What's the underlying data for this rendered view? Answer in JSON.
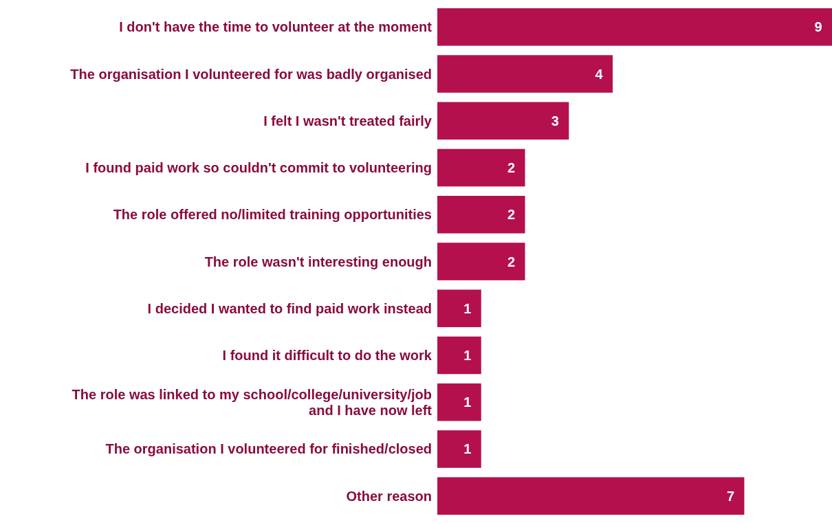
{
  "chart_data": {
    "type": "bar",
    "orientation": "horizontal",
    "data_labels": true,
    "color": "#b5104e",
    "categories": [
      "I don't have the time to volunteer at the moment",
      "The organisation I volunteered for was badly organised",
      "I felt I wasn't treated fairly",
      "I found paid work so couldn't commit to volunteering",
      "The role offered no/limited training opportunities",
      "The role wasn't interesting enough",
      "I decided I wanted to find paid work instead",
      "I found it difficult to do the work",
      "The role was linked to my school/college/university/job and I have now left",
      "The organisation I volunteered for finished/closed",
      "Other reason"
    ],
    "values": [
      9,
      4,
      3,
      2,
      2,
      2,
      1,
      1,
      1,
      1,
      7
    ]
  }
}
